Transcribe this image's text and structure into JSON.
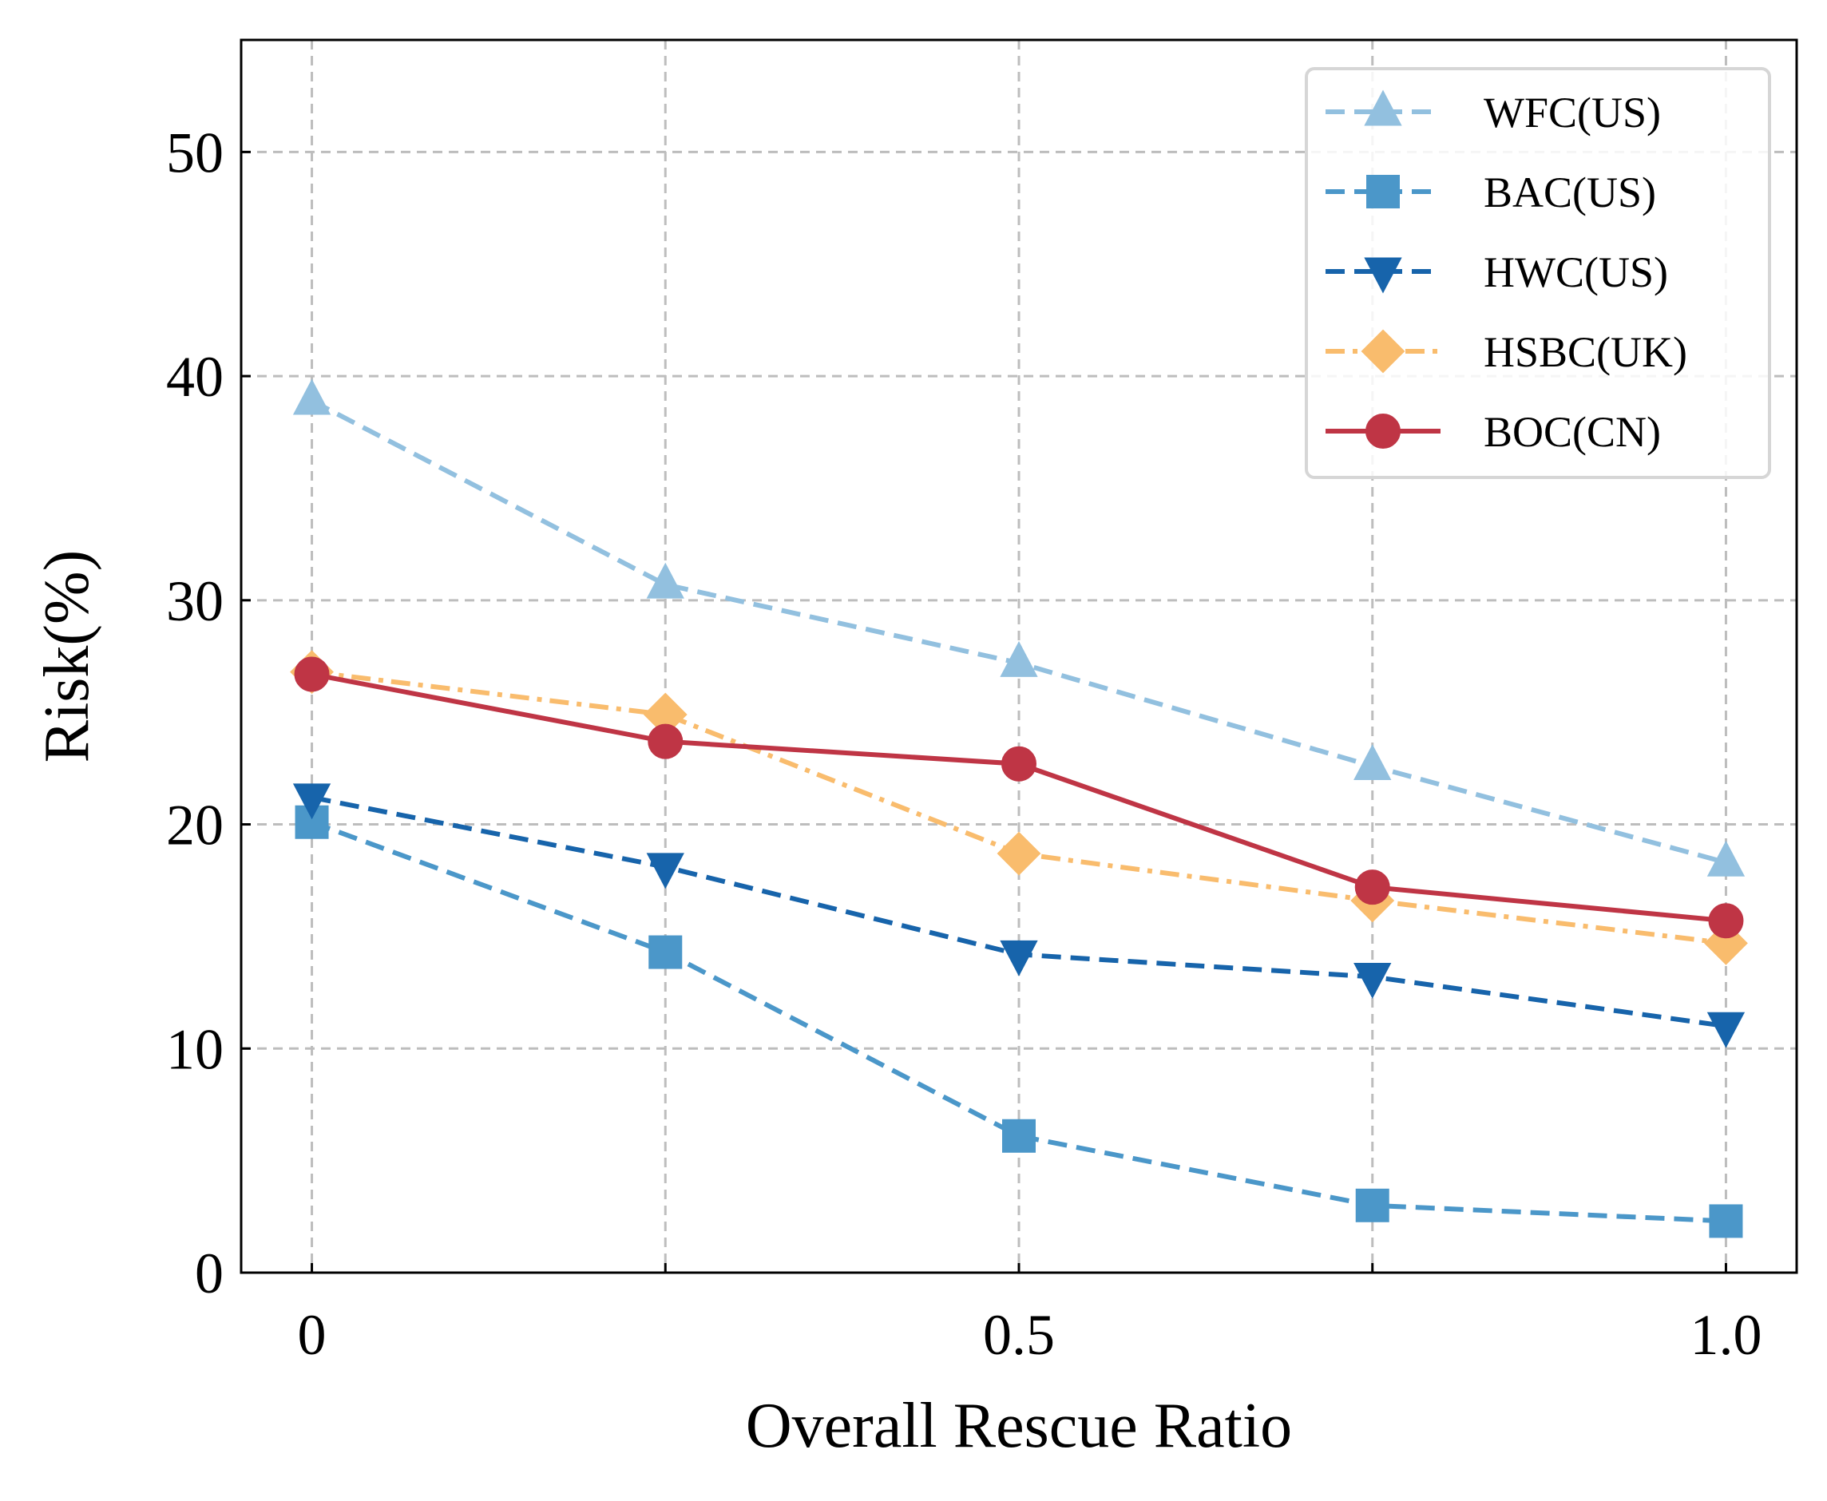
{
  "chart_data": {
    "type": "line",
    "title": "",
    "xlabel": "Overall Rescue Ratio",
    "ylabel": "Risk(%)",
    "xlim": [
      -0.05,
      1.05
    ],
    "ylim": [
      0,
      55
    ],
    "grid": true,
    "grid_style": "dashed",
    "legend_position": "top-right",
    "x_ticks": [
      {
        "value": 0,
        "label": "0"
      },
      {
        "value": 0.5,
        "label": "0.5"
      },
      {
        "value": 1.0,
        "label": "1.0"
      }
    ],
    "x_grid": [
      0,
      0.25,
      0.5,
      0.75,
      1.0
    ],
    "y_ticks": [
      {
        "value": 0,
        "label": "0"
      },
      {
        "value": 10,
        "label": "10"
      },
      {
        "value": 20,
        "label": "20"
      },
      {
        "value": 30,
        "label": "30"
      },
      {
        "value": 40,
        "label": "40"
      },
      {
        "value": 50,
        "label": "50"
      }
    ],
    "x": [
      0,
      0.25,
      0.5,
      0.75,
      1.0
    ],
    "series": [
      {
        "name": "WFC(US)",
        "values": [
          38.9,
          30.7,
          27.2,
          22.6,
          18.3
        ],
        "color": "#92c0df",
        "marker": "triangle-up",
        "dash": "dashed"
      },
      {
        "name": "BAC(US)",
        "values": [
          20.1,
          14.3,
          6.1,
          3.0,
          2.3
        ],
        "color": "#4b97c9",
        "marker": "square",
        "dash": "dashed"
      },
      {
        "name": "HWC(US)",
        "values": [
          21.2,
          18.1,
          14.2,
          13.2,
          11.0
        ],
        "color": "#1764ab",
        "marker": "triangle-down",
        "dash": "dashed"
      },
      {
        "name": "HSBC(UK)",
        "values": [
          26.8,
          24.9,
          18.7,
          16.6,
          14.7
        ],
        "color": "#f9bc6d",
        "marker": "diamond",
        "dash": "dashdot"
      },
      {
        "name": "BOC(CN)",
        "values": [
          26.7,
          23.7,
          22.7,
          17.2,
          15.7
        ],
        "color": "#bf3545",
        "marker": "circle",
        "dash": "solid"
      }
    ]
  }
}
